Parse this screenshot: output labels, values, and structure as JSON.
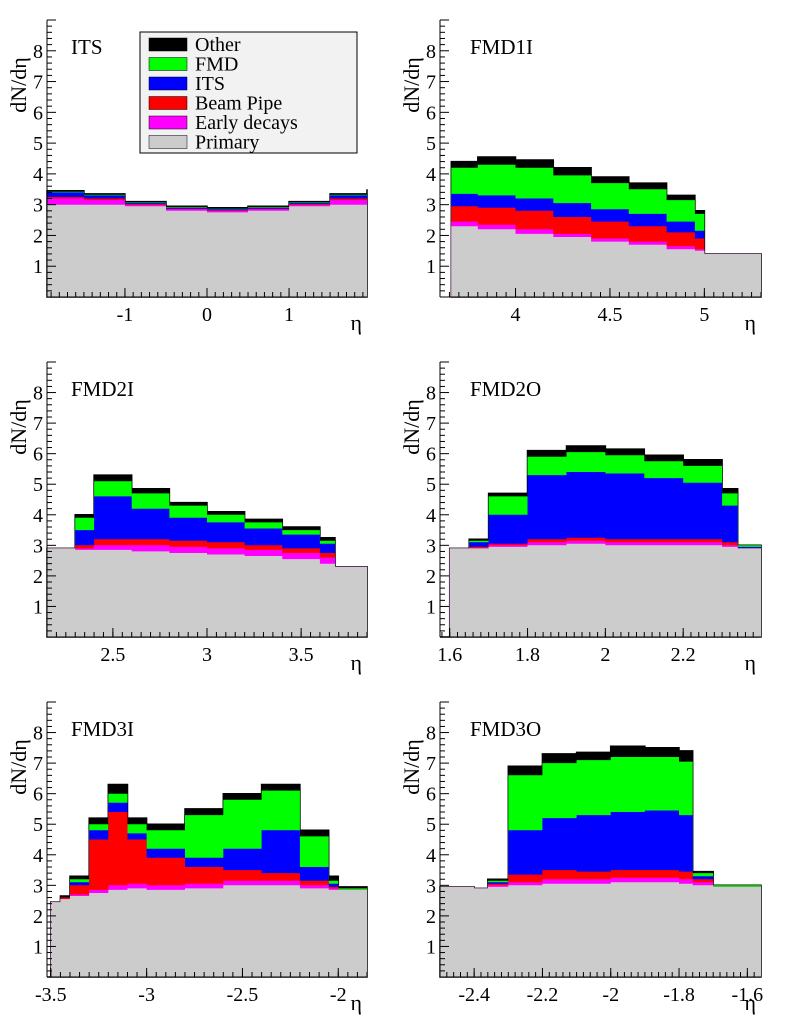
{
  "colors": {
    "Primary": "#cccccc",
    "Early decays": "#ff00ff",
    "Beam Pipe": "#ff0000",
    "ITS": "#0000ff",
    "FMD": "#00ff00",
    "Other": "#000000"
  },
  "legend": {
    "entries": [
      "Other",
      "FMD",
      "ITS",
      "Beam Pipe",
      "Early decays",
      "Primary"
    ]
  },
  "chart_data": [
    {
      "type": "area",
      "title": "ITS",
      "xlabel": "η",
      "ylabel": "dN/dη",
      "xlim": [
        -1.95,
        1.95
      ],
      "ylim": [
        0,
        9
      ],
      "xticks": [
        -1,
        0,
        1
      ],
      "yticks": [
        1,
        2,
        3,
        4,
        5,
        6,
        7,
        8
      ],
      "x": [
        -1.95,
        -1.5,
        -1.0,
        -0.5,
        0.0,
        0.5,
        1.0,
        1.5,
        1.95
      ],
      "series": [
        {
          "name": "Primary",
          "values": [
            3.0,
            3.0,
            2.95,
            2.8,
            2.75,
            2.8,
            2.95,
            3.0,
            3.0
          ]
        },
        {
          "name": "Early decays",
          "values": [
            3.2,
            3.15,
            3.0,
            2.85,
            2.8,
            2.85,
            3.0,
            3.15,
            3.2
          ]
        },
        {
          "name": "Beam Pipe",
          "values": [
            3.25,
            3.2,
            3.02,
            2.87,
            2.82,
            2.87,
            3.02,
            3.2,
            3.25
          ]
        },
        {
          "name": "ITS",
          "values": [
            3.4,
            3.3,
            3.05,
            2.9,
            2.85,
            2.9,
            3.05,
            3.3,
            3.45
          ]
        },
        {
          "name": "FMD",
          "values": [
            3.42,
            3.32,
            3.07,
            2.92,
            2.87,
            2.92,
            3.07,
            3.32,
            3.47
          ]
        },
        {
          "name": "Other",
          "values": [
            3.45,
            3.35,
            3.1,
            2.95,
            2.9,
            2.95,
            3.1,
            3.35,
            3.5
          ]
        }
      ]
    },
    {
      "type": "area",
      "title": "FMD1I",
      "xlabel": "η",
      "ylabel": "dN/dη",
      "xlim": [
        3.6,
        5.3
      ],
      "ylim": [
        0,
        9
      ],
      "xticks": [
        4,
        4.5,
        5
      ],
      "xtick_labels": [
        "4",
        "4.5",
        "5"
      ],
      "yticks": [
        1,
        2,
        3,
        4,
        5,
        6,
        7,
        8
      ],
      "x": [
        3.66,
        3.8,
        4.0,
        4.2,
        4.4,
        4.6,
        4.8,
        4.95,
        5.0,
        5.3
      ],
      "series": [
        {
          "name": "Primary",
          "values": [
            2.3,
            2.2,
            2.05,
            1.95,
            1.8,
            1.7,
            1.55,
            1.5,
            1.4,
            1.2
          ]
        },
        {
          "name": "Early decays",
          "values": [
            2.45,
            2.35,
            2.2,
            2.05,
            1.9,
            1.8,
            1.65,
            1.55,
            1.4,
            1.2
          ]
        },
        {
          "name": "Beam Pipe",
          "values": [
            2.95,
            2.9,
            2.8,
            2.6,
            2.45,
            2.3,
            2.1,
            1.9,
            1.4,
            1.2
          ]
        },
        {
          "name": "ITS",
          "values": [
            3.35,
            3.3,
            3.2,
            3.05,
            2.85,
            2.7,
            2.45,
            2.15,
            1.4,
            1.2
          ]
        },
        {
          "name": "FMD",
          "values": [
            4.2,
            4.3,
            4.2,
            3.95,
            3.7,
            3.5,
            3.15,
            2.7,
            1.4,
            1.2
          ]
        },
        {
          "name": "Other",
          "values": [
            4.4,
            4.55,
            4.45,
            4.2,
            3.9,
            3.7,
            3.3,
            2.8,
            1.4,
            1.2
          ]
        }
      ]
    },
    {
      "type": "area",
      "title": "FMD2I",
      "xlabel": "η",
      "ylabel": "dN/dη",
      "xlim": [
        2.15,
        3.85
      ],
      "ylim": [
        0,
        9
      ],
      "xticks": [
        2.5,
        3,
        3.5
      ],
      "xtick_labels": [
        "2.5",
        "3",
        "3.5"
      ],
      "yticks": [
        1,
        2,
        3,
        4,
        5,
        6,
        7,
        8
      ],
      "x": [
        2.15,
        2.25,
        2.3,
        2.4,
        2.6,
        2.8,
        3.0,
        3.2,
        3.4,
        3.6,
        3.68,
        3.85
      ],
      "series": [
        {
          "name": "Primary",
          "values": [
            2.9,
            2.9,
            2.85,
            2.85,
            2.8,
            2.75,
            2.7,
            2.65,
            2.55,
            2.4,
            2.3,
            2.25
          ]
        },
        {
          "name": "Early decays",
          "values": [
            2.9,
            2.9,
            2.9,
            3.0,
            3.0,
            2.95,
            2.9,
            2.85,
            2.75,
            2.6,
            2.3,
            2.25
          ]
        },
        {
          "name": "Beam Pipe",
          "values": [
            2.9,
            2.9,
            3.0,
            3.2,
            3.2,
            3.15,
            3.1,
            3.0,
            2.9,
            2.75,
            2.3,
            2.25
          ]
        },
        {
          "name": "ITS",
          "values": [
            2.9,
            2.9,
            3.5,
            4.6,
            4.2,
            3.9,
            3.75,
            3.55,
            3.35,
            3.05,
            2.3,
            2.25
          ]
        },
        {
          "name": "FMD",
          "values": [
            2.9,
            2.9,
            3.9,
            5.1,
            4.7,
            4.3,
            4.0,
            3.75,
            3.5,
            3.15,
            2.3,
            2.25
          ]
        },
        {
          "name": "Other",
          "values": [
            2.9,
            2.9,
            4.0,
            5.3,
            4.85,
            4.4,
            4.1,
            3.85,
            3.6,
            3.25,
            2.3,
            2.25
          ]
        }
      ]
    },
    {
      "type": "area",
      "title": "FMD2O",
      "xlabel": "η",
      "ylabel": "dN/dη",
      "xlim": [
        1.575,
        2.4
      ],
      "ylim": [
        0,
        9
      ],
      "xticks": [
        1.6,
        1.8,
        2,
        2.2
      ],
      "xtick_labels": [
        "1.6",
        "1.8",
        "2",
        "2.2"
      ],
      "yticks": [
        1,
        2,
        3,
        4,
        5,
        6,
        7,
        8
      ],
      "x": [
        1.575,
        1.6,
        1.62,
        1.65,
        1.7,
        1.8,
        1.9,
        2.0,
        2.1,
        2.2,
        2.3,
        2.34,
        2.4
      ],
      "series": [
        {
          "name": "Primary",
          "values": [
            0.0,
            2.9,
            2.9,
            2.9,
            2.95,
            3.0,
            3.05,
            3.0,
            3.0,
            3.0,
            2.95,
            2.9,
            2.9
          ]
        },
        {
          "name": "Early decays",
          "values": [
            0.0,
            2.9,
            2.9,
            2.9,
            3.0,
            3.1,
            3.15,
            3.1,
            3.1,
            3.1,
            3.0,
            2.9,
            2.9
          ]
        },
        {
          "name": "Beam Pipe",
          "values": [
            0.0,
            2.9,
            2.9,
            2.95,
            3.05,
            3.2,
            3.25,
            3.2,
            3.2,
            3.2,
            3.1,
            2.9,
            2.9
          ]
        },
        {
          "name": "ITS",
          "values": [
            0.0,
            2.9,
            2.9,
            3.1,
            4.0,
            5.3,
            5.4,
            5.35,
            5.2,
            5.05,
            4.3,
            2.95,
            2.9
          ]
        },
        {
          "name": "FMD",
          "values": [
            0.0,
            2.9,
            2.9,
            3.15,
            4.6,
            5.9,
            6.05,
            5.95,
            5.75,
            5.6,
            4.7,
            3.0,
            2.9
          ]
        },
        {
          "name": "Other",
          "values": [
            0.0,
            2.9,
            2.9,
            3.2,
            4.7,
            6.1,
            6.25,
            6.15,
            5.95,
            5.8,
            4.85,
            3.0,
            2.9
          ]
        }
      ]
    },
    {
      "type": "area",
      "title": "FMD3I",
      "xlabel": "η",
      "ylabel": "dN/dη",
      "xlim": [
        -3.52,
        -1.85
      ],
      "ylim": [
        0,
        9
      ],
      "xticks": [
        -3.5,
        -3,
        -2.5,
        -2
      ],
      "xtick_labels": [
        "-3.5",
        "-3",
        "-2.5",
        "-2"
      ],
      "yticks": [
        1,
        2,
        3,
        4,
        5,
        6,
        7,
        8
      ],
      "x": [
        -3.52,
        -3.5,
        -3.45,
        -3.4,
        -3.3,
        -3.2,
        -3.1,
        -3.0,
        -2.8,
        -2.6,
        -2.4,
        -2.2,
        -2.05,
        -2.0,
        -1.85
      ],
      "series": [
        {
          "name": "Primary",
          "values": [
            0.0,
            2.45,
            2.55,
            2.65,
            2.75,
            2.85,
            2.9,
            2.85,
            2.9,
            3.0,
            3.0,
            2.9,
            2.85,
            2.85,
            2.85
          ]
        },
        {
          "name": "Early decays",
          "values": [
            0.0,
            2.45,
            2.55,
            2.7,
            2.85,
            3.0,
            3.05,
            3.0,
            3.05,
            3.15,
            3.15,
            3.0,
            2.9,
            2.85,
            2.85
          ]
        },
        {
          "name": "Beam Pipe",
          "values": [
            0.0,
            2.45,
            2.6,
            3.0,
            4.5,
            5.4,
            4.5,
            3.9,
            3.6,
            3.5,
            3.4,
            3.15,
            2.95,
            2.85,
            2.85
          ]
        },
        {
          "name": "ITS",
          "values": [
            0.0,
            2.45,
            2.6,
            3.1,
            4.8,
            5.7,
            4.7,
            4.2,
            3.9,
            4.2,
            4.8,
            3.6,
            3.05,
            2.85,
            2.85
          ]
        },
        {
          "name": "FMD",
          "values": [
            0.0,
            2.45,
            2.6,
            3.2,
            5.0,
            6.0,
            5.0,
            4.8,
            5.3,
            5.8,
            6.1,
            4.6,
            3.15,
            2.9,
            2.85
          ]
        },
        {
          "name": "Other",
          "values": [
            0.0,
            2.45,
            2.65,
            3.3,
            5.2,
            6.3,
            5.2,
            5.0,
            5.5,
            6.0,
            6.3,
            4.8,
            3.3,
            2.95,
            2.85
          ]
        }
      ]
    },
    {
      "type": "area",
      "title": "FMD3O",
      "xlabel": "η",
      "ylabel": "dN/dη",
      "xlim": [
        -2.5,
        -1.56
      ],
      "ylim": [
        0,
        9
      ],
      "xticks": [
        -2.4,
        -2.2,
        -2,
        -1.8,
        -1.6
      ],
      "xtick_labels": [
        "-2.4",
        "-2.2",
        "-2",
        "-1.8",
        "-1.6"
      ],
      "yticks": [
        1,
        2,
        3,
        4,
        5,
        6,
        7,
        8
      ],
      "x": [
        -2.5,
        -2.4,
        -2.36,
        -2.3,
        -2.2,
        -2.1,
        -2.0,
        -1.9,
        -1.8,
        -1.76,
        -1.7,
        -1.56
      ],
      "series": [
        {
          "name": "Primary",
          "values": [
            2.95,
            2.9,
            2.95,
            3.0,
            3.05,
            3.05,
            3.1,
            3.1,
            3.05,
            3.0,
            2.95,
            2.9
          ]
        },
        {
          "name": "Early decays",
          "values": [
            2.95,
            2.9,
            3.0,
            3.1,
            3.2,
            3.2,
            3.25,
            3.25,
            3.2,
            3.1,
            2.95,
            2.9
          ]
        },
        {
          "name": "Beam Pipe",
          "values": [
            2.95,
            2.9,
            3.05,
            3.35,
            3.5,
            3.45,
            3.5,
            3.5,
            3.45,
            3.2,
            2.95,
            2.9
          ]
        },
        {
          "name": "ITS",
          "values": [
            2.95,
            2.9,
            3.1,
            4.8,
            5.2,
            5.3,
            5.4,
            5.45,
            5.3,
            3.3,
            2.95,
            2.9
          ]
        },
        {
          "name": "FMD",
          "values": [
            2.95,
            2.9,
            3.15,
            6.6,
            7.0,
            7.1,
            7.2,
            7.2,
            7.05,
            3.4,
            3.0,
            2.9
          ]
        },
        {
          "name": "Other",
          "values": [
            2.95,
            2.9,
            3.2,
            6.9,
            7.3,
            7.35,
            7.55,
            7.5,
            7.4,
            3.45,
            3.0,
            2.9
          ]
        }
      ]
    }
  ]
}
